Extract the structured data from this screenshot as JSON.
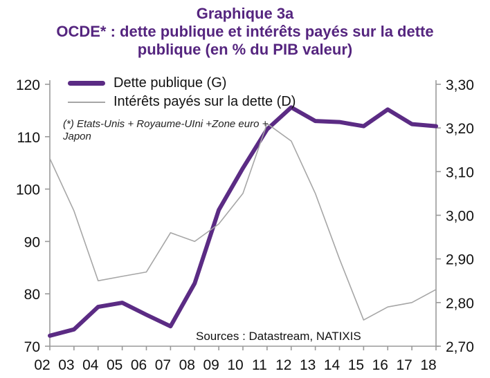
{
  "chart_data": {
    "type": "line",
    "title_lines": [
      "Graphique 3a",
      "OCDE* : dette publique et intérêts payés sur la dette",
      "publique (en % du PIB valeur)"
    ],
    "title_color": "#55257f",
    "categories": [
      "02",
      "03",
      "04",
      "05",
      "06",
      "07",
      "08",
      "09",
      "10",
      "11",
      "12",
      "13",
      "14",
      "15",
      "16",
      "17",
      "18"
    ],
    "series": [
      {
        "name": "Dette publique (G)",
        "axis": "left",
        "color": "#5b2b84",
        "stroke_width": 6,
        "values": [
          72,
          73.2,
          77.5,
          78.3,
          76,
          73.8,
          82,
          96,
          104,
          111.4,
          115.6,
          113,
          112.8,
          112,
          115.2,
          112.4,
          112
        ]
      },
      {
        "name": "Intérêts payés sur la dette (D)",
        "axis": "right",
        "color": "#a6a6a6",
        "stroke_width": 1.6,
        "values": [
          3.13,
          3.01,
          2.85,
          2.86,
          2.87,
          2.96,
          2.94,
          2.98,
          3.05,
          3.21,
          3.17,
          3.05,
          2.9,
          2.76,
          2.79,
          2.8,
          2.83
        ]
      }
    ],
    "left_axis": {
      "min": 70,
      "max": 120,
      "step": 10,
      "tick_labels": [
        "70",
        "80",
        "90",
        "100",
        "110",
        "120"
      ]
    },
    "right_axis": {
      "min": 2.7,
      "max": 3.3,
      "step": 0.1,
      "tick_labels": [
        "2,70",
        "2,80",
        "2,90",
        "3,00",
        "3,10",
        "3,20",
        "3,30"
      ]
    },
    "note_lines": [
      "(*) Etats-Unis + Royaume-UIni +Zone euro +",
      "Japon"
    ],
    "sources": "Sources : Datastream,  NATIXIS",
    "legend_position": "top-left-inside",
    "grid": false,
    "axis_line_color": "#999999",
    "tick_label_color": "#111111"
  }
}
